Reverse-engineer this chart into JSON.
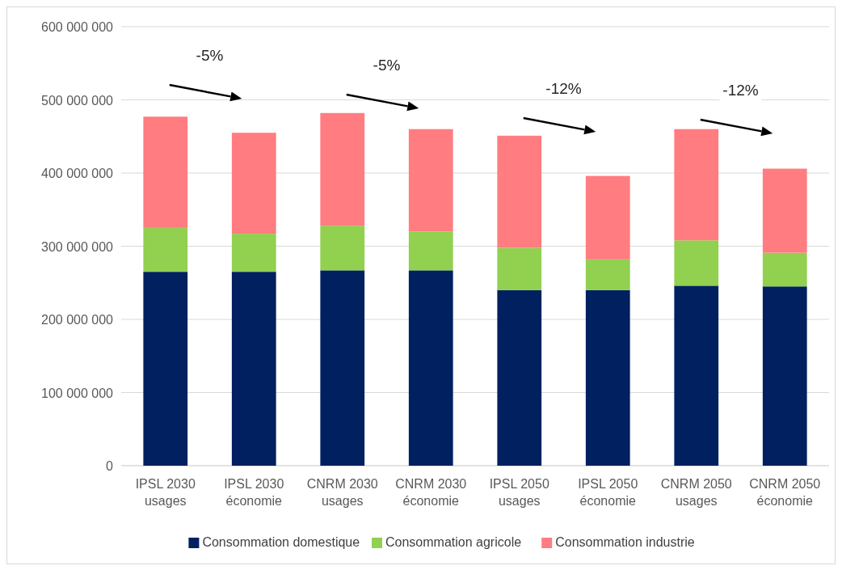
{
  "chart_data": {
    "type": "bar",
    "stacked": true,
    "categories": [
      "IPSL 2030 usages",
      "IPSL 2030 économie",
      "CNRM 2030 usages",
      "CNRM 2030 économie",
      "IPSL 2050 usages",
      "IPSL 2050 économie",
      "CNRM 2050 usages",
      "CNRM 2050 économie"
    ],
    "series": [
      {
        "name": "Consommation domestique",
        "color": "#002060",
        "values": [
          265000000,
          265000000,
          267000000,
          267000000,
          240000000,
          240000000,
          246000000,
          245000000
        ]
      },
      {
        "name": "Consommation agricole",
        "color": "#92d050",
        "values": [
          60000000,
          52000000,
          61000000,
          53000000,
          58000000,
          42000000,
          62000000,
          46000000
        ]
      },
      {
        "name": "Consommation industrie",
        "color": "#ff7c80",
        "values": [
          152000000,
          138000000,
          154000000,
          140000000,
          153000000,
          114000000,
          152000000,
          115000000
        ]
      }
    ],
    "ylim": [
      0,
      600000000
    ],
    "yticks": [
      0,
      {
        "value": 100000000,
        "label": "100 000 000"
      },
      {
        "value": 200000000,
        "label": "200 000 000"
      },
      {
        "value": 300000000,
        "label": "300 000 000"
      },
      {
        "value": 400000000,
        "label": "400 000 000"
      },
      {
        "value": 500000000,
        "label": "500 000 000"
      },
      {
        "value": 600000000,
        "label": "600 000 000"
      }
    ],
    "grid": "y",
    "legend": "bottom",
    "annotations": [
      "-5%",
      "-5%",
      "-12%",
      "-12%"
    ]
  }
}
